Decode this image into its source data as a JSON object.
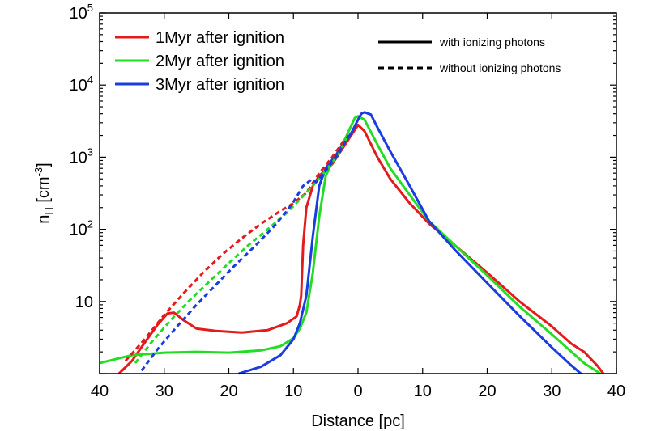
{
  "chart_data": {
    "type": "line",
    "xlabel": "Distance [pc]",
    "ylabel_base": "n",
    "ylabel_sub": "H",
    "ylabel_unit_open": " [cm",
    "ylabel_unit_exp": "-3",
    "ylabel_unit_close": "]",
    "xlim": [
      -40,
      40
    ],
    "ylim": [
      1,
      100000
    ],
    "yscale": "log",
    "grid": false,
    "legend_position": "top-left",
    "x_ticks": [
      -40,
      -30,
      -20,
      -10,
      0,
      10,
      20,
      30,
      40
    ],
    "x_tick_labels": [
      "40",
      "30",
      "20",
      "10",
      "0",
      "10",
      "20",
      "30",
      "40"
    ],
    "y_ticks": [
      {
        "value": 10,
        "base": "10",
        "exp": ""
      },
      {
        "value": 100,
        "base": "10",
        "exp": "2"
      },
      {
        "value": 1000,
        "base": "10",
        "exp": "3"
      },
      {
        "value": 10000,
        "base": "10",
        "exp": "4"
      },
      {
        "value": 100000,
        "base": "10",
        "exp": "5"
      }
    ],
    "style_legend": [
      {
        "label": "with ionizing photons",
        "dash": "solid"
      },
      {
        "label": "without ionizing photons",
        "dash": "dashed"
      }
    ],
    "series": [
      {
        "name": "1Myr after ignition",
        "color": "#e41a1c",
        "dash": "solid",
        "x": [
          -37,
          -35,
          -33,
          -31,
          -29.5,
          -28.5,
          -27,
          -25,
          -22,
          -18,
          -14,
          -11,
          -9.5,
          -9,
          -8.8,
          -8.5,
          -8,
          -7,
          -6,
          -4,
          -2,
          0,
          1,
          3,
          5,
          8,
          11,
          15,
          20,
          25,
          30,
          33,
          35,
          37,
          38
        ],
        "y": [
          1,
          1.5,
          2.7,
          4.8,
          6.8,
          7.0,
          5.5,
          4.2,
          3.9,
          3.7,
          4.0,
          5.0,
          6.2,
          9,
          12,
          60,
          200,
          400,
          550,
          800,
          1500,
          2800,
          2300,
          1000,
          500,
          230,
          120,
          60,
          25,
          10,
          4.5,
          2.6,
          2.0,
          1.3,
          1.0
        ]
      },
      {
        "name": "2Myr after ignition",
        "color": "#22dd22",
        "dash": "solid",
        "x": [
          -40,
          -35,
          -30,
          -25,
          -20,
          -15,
          -12,
          -10,
          -9,
          -8,
          -7,
          -6,
          -5,
          -4,
          -2,
          -0.5,
          0,
          1,
          3,
          5,
          8,
          11,
          15,
          20,
          25,
          30,
          35,
          37.5
        ],
        "y": [
          1.4,
          1.8,
          1.95,
          2.0,
          1.95,
          2.1,
          2.4,
          3.1,
          4.2,
          7,
          25,
          150,
          550,
          850,
          1800,
          3500,
          3700,
          3300,
          1500,
          700,
          300,
          130,
          60,
          23,
          8.5,
          3.5,
          1.4,
          1.0
        ]
      },
      {
        "name": "3Myr after ignition",
        "color": "#1a3ce0",
        "dash": "solid",
        "x": [
          -18.5,
          -15,
          -12,
          -10,
          -9,
          -8,
          -7,
          -6,
          -5,
          -3,
          -1,
          0,
          0.5,
          1,
          2,
          3,
          5,
          8,
          11,
          15,
          20,
          25,
          30,
          33,
          34.5
        ],
        "y": [
          1.0,
          1.25,
          1.8,
          3.0,
          5.0,
          12,
          80,
          400,
          700,
          1200,
          2200,
          3300,
          4000,
          4200,
          3900,
          2600,
          1200,
          400,
          130,
          52,
          18,
          6.3,
          2.3,
          1.3,
          1.0
        ]
      },
      {
        "name": "",
        "color": "#e41a1c",
        "dash": "dashed",
        "x": [
          -36,
          -33,
          -30,
          -27,
          -24,
          -21,
          -18,
          -15,
          -12,
          -10,
          -8,
          -6,
          -4,
          -2
        ],
        "y": [
          1.5,
          3.0,
          6.5,
          13,
          25,
          45,
          75,
          120,
          180,
          230,
          320,
          600,
          1000,
          1800
        ]
      },
      {
        "name": "",
        "color": "#22dd22",
        "dash": "dashed",
        "x": [
          -34.5,
          -32,
          -29,
          -26,
          -23,
          -20,
          -17,
          -14,
          -11,
          -9,
          -7,
          -5,
          -3,
          -1.5
        ],
        "y": [
          1.4,
          2.7,
          5.5,
          10.5,
          19,
          34,
          60,
          100,
          170,
          260,
          400,
          650,
          1100,
          2000
        ]
      },
      {
        "name": "",
        "color": "#1a3ce0",
        "dash": "dashed",
        "x": [
          -33.5,
          -31,
          -28,
          -25,
          -22,
          -19,
          -16,
          -13,
          -11,
          -10,
          -8.5,
          -7.2,
          -6.5,
          -5,
          -3,
          -1.5
        ],
        "y": [
          1.1,
          2.2,
          4.5,
          9,
          17,
          32,
          58,
          110,
          180,
          240,
          400,
          490,
          450,
          650,
          1100,
          2000
        ]
      }
    ]
  }
}
